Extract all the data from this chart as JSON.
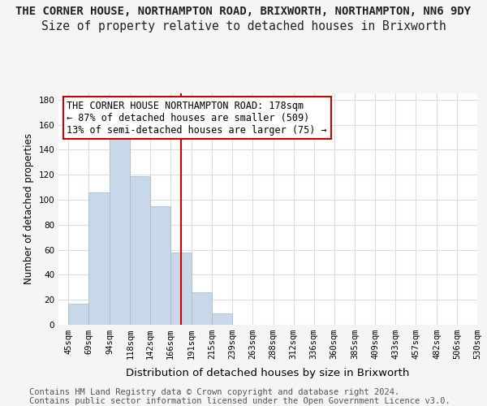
{
  "title": "THE CORNER HOUSE, NORTHAMPTON ROAD, BRIXWORTH, NORTHAMPTON, NN6 9DY",
  "subtitle": "Size of property relative to detached houses in Brixworth",
  "xlabel": "Distribution of detached houses by size in Brixworth",
  "ylabel": "Number of detached properties",
  "property_size": 178,
  "property_line_color": "#cc0000",
  "bar_color": "#c8d8e8",
  "bar_edge_color": "#a0b8cc",
  "annotation_text": "THE CORNER HOUSE NORTHAMPTON ROAD: 178sqm\n← 87% of detached houses are smaller (509)\n13% of semi-detached houses are larger (75) →",
  "annotation_box_color": "#ffffff",
  "annotation_border_color": "#cc0000",
  "footer_text": "Contains HM Land Registry data © Crown copyright and database right 2024.\nContains public sector information licensed under the Open Government Licence v3.0.",
  "bin_edges": [
    45,
    69,
    94,
    118,
    142,
    166,
    191,
    215,
    239,
    263,
    288,
    312,
    336,
    360,
    385,
    409,
    433,
    457,
    482,
    506,
    530
  ],
  "bar_heights": [
    17,
    106,
    152,
    119,
    95,
    58,
    26,
    9,
    0,
    0,
    0,
    0,
    0,
    0,
    0,
    0,
    0,
    0,
    0,
    0
  ],
  "ylim": [
    0,
    185
  ],
  "yticks": [
    0,
    20,
    40,
    60,
    80,
    100,
    120,
    140,
    160,
    180
  ],
  "background_color": "#f5f5f5",
  "plot_bg_color": "#ffffff",
  "grid_color": "#dddddd",
  "title_fontsize": 10.0,
  "subtitle_fontsize": 10.5,
  "xlabel_fontsize": 9.5,
  "ylabel_fontsize": 8.5,
  "tick_fontsize": 7.5,
  "annotation_fontsize": 8.5,
  "footer_fontsize": 7.5
}
